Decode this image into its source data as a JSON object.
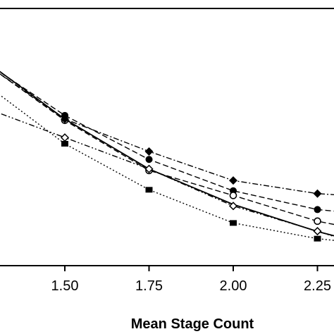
{
  "chart_data": {
    "type": "line",
    "xlabel": "Mean Stage Count",
    "ylabel": "",
    "title": "",
    "x_ticks": [
      "1.50",
      "1.75",
      "2.00",
      "2.25"
    ],
    "xlim": [
      1.27,
      2.3
    ],
    "ylim": [
      0,
      1
    ],
    "grid": false,
    "series": [
      {
        "style": "solid",
        "marker": "none",
        "color": "#000000",
        "x": [
          1.27,
          1.5,
          1.75,
          2.0,
          2.25,
          2.3
        ],
        "y": [
          0.79,
          0.57,
          0.376,
          0.238,
          0.133,
          0.116
        ]
      },
      {
        "style": "dash",
        "marker": "circle",
        "color": "#000000",
        "x": [
          1.27,
          1.5,
          1.75,
          2.0,
          2.25,
          2.3
        ],
        "y": [
          0.785,
          0.584,
          0.413,
          0.291,
          0.218,
          0.212
        ]
      },
      {
        "style": "dash",
        "marker": "open-circle",
        "color": "#000000",
        "x": [
          1.27,
          1.5,
          1.75,
          2.0,
          2.25,
          2.3
        ],
        "y": [
          0.78,
          0.565,
          0.37,
          0.273,
          0.173,
          0.16
        ]
      },
      {
        "style": "dashdot",
        "marker": "diamond",
        "color": "#000000",
        "x": [
          1.27,
          1.5,
          1.75,
          2.0,
          2.25,
          2.3
        ],
        "y": [
          0.78,
          0.57,
          0.444,
          0.331,
          0.28,
          0.276
        ]
      },
      {
        "style": "dot",
        "marker": "square",
        "color": "#000000",
        "x": [
          1.27,
          1.5,
          1.75,
          2.0,
          2.25,
          2.3
        ],
        "y": [
          0.7,
          0.474,
          0.295,
          0.166,
          0.105,
          0.098
        ]
      },
      {
        "style": "dashdotdot",
        "marker": "open-diamond",
        "color": "#000000",
        "x": [
          1.27,
          1.5,
          1.75,
          2.0,
          2.25,
          2.3
        ],
        "y": [
          0.61,
          0.498,
          0.376,
          0.232,
          0.134,
          0.113
        ]
      }
    ]
  }
}
